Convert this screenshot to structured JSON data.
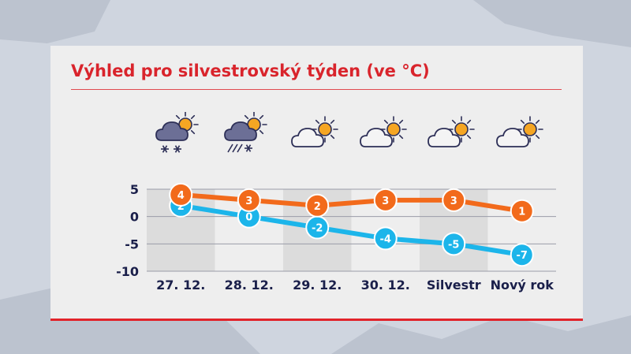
{
  "title": "Výhled pro silvestrovský týden (ve °C)",
  "icons": [
    {
      "name": "cloud-sun-snow-icon",
      "kind": "snow"
    },
    {
      "name": "cloud-sun-sleet-icon",
      "kind": "sleet"
    },
    {
      "name": "cloud-sun-icon",
      "kind": "partly"
    },
    {
      "name": "cloud-sun-icon",
      "kind": "partly"
    },
    {
      "name": "cloud-sun-icon",
      "kind": "partly"
    },
    {
      "name": "cloud-sun-icon",
      "kind": "partly"
    }
  ],
  "colors": {
    "title": "#d9242c",
    "series_max": "#f26a1b",
    "series_min": "#1cb5ea",
    "text": "#1a1f4a",
    "accent_line": "#e1232a"
  },
  "chart_data": {
    "type": "line",
    "categories": [
      "27. 12.",
      "28. 12.",
      "29. 12.",
      "30. 12.",
      "Silvestr",
      "Nový rok"
    ],
    "series": [
      {
        "key": "max",
        "values": [
          4,
          3,
          2,
          3,
          3,
          1
        ]
      },
      {
        "key": "min",
        "values": [
          2,
          0,
          -2,
          -4,
          -5,
          -7
        ]
      }
    ],
    "yticks": [
      5,
      0,
      -5,
      -10
    ],
    "ylim": [
      -10,
      5
    ],
    "grid": true,
    "legend": "none"
  }
}
